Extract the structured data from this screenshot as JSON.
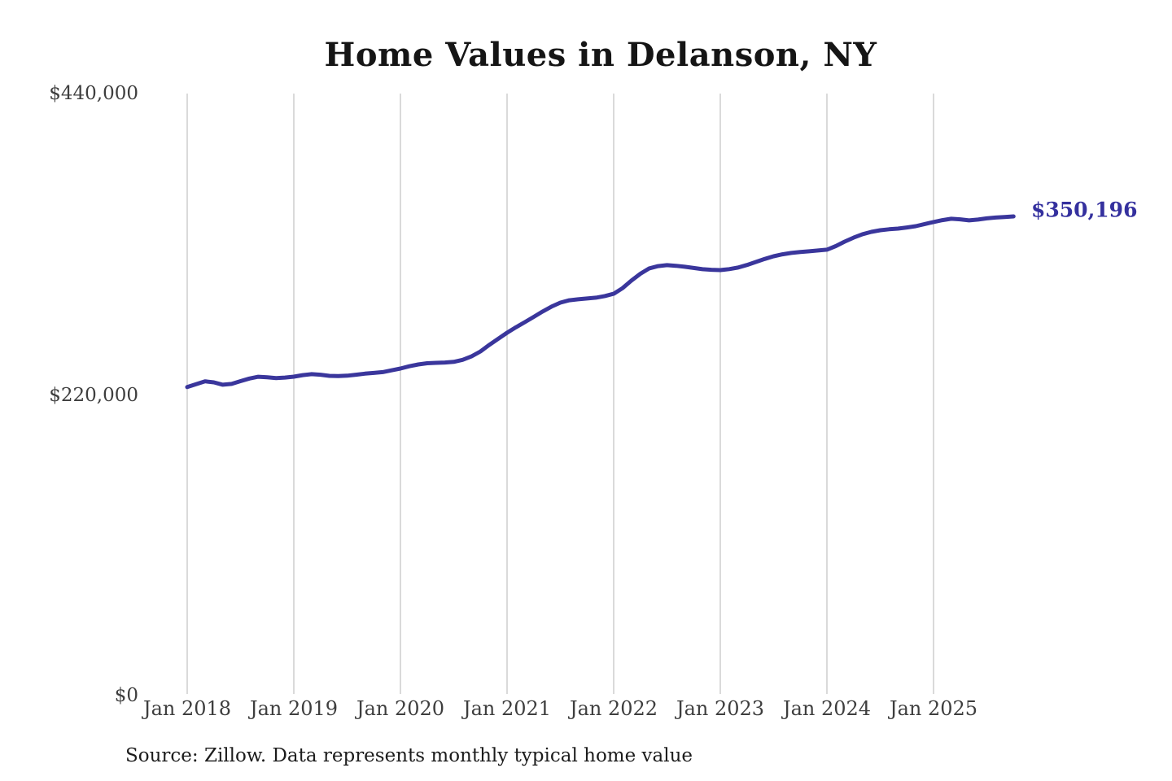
{
  "page": {
    "title": "Home Values in Delanson, NY",
    "end_label": "$350,196",
    "source_note": "Source: Zillow. Data represents monthly typical home value"
  },
  "colors": {
    "line": "#3a369c",
    "annotation": "#34309e",
    "gridline": "#cbcbcb",
    "tick_text": "#3e3e3e"
  },
  "chart_data": {
    "type": "line",
    "title": "Home Values in Delanson, NY",
    "series_name": "Monthly typical home value (USD)",
    "x_start": "2018-01",
    "x_end": "2025-10",
    "cadence": "monthly",
    "x_tick_labels": [
      "Jan 2018",
      "Jan 2019",
      "Jan 2020",
      "Jan 2021",
      "Jan 2022",
      "Jan 2023",
      "Jan 2024",
      "Jan 2025"
    ],
    "y_tick_labels": [
      "$440,000",
      "$220,000",
      "$0"
    ],
    "y_ticks": [
      440000,
      220000,
      0
    ],
    "ylim": [
      0,
      440000
    ],
    "grid": "vertical-only",
    "legend": "none",
    "annotation": {
      "text": "$350,196",
      "value": 350196,
      "position": "end-of-line"
    },
    "values": [
      225500,
      227600,
      229700,
      228900,
      227200,
      227800,
      229800,
      231700,
      233000,
      232600,
      232000,
      232400,
      233100,
      234200,
      234900,
      234500,
      233700,
      233500,
      233800,
      234500,
      235300,
      235800,
      236400,
      237700,
      239000,
      240700,
      242000,
      242900,
      243200,
      243400,
      243900,
      245400,
      247900,
      251500,
      256300,
      260800,
      265200,
      269200,
      272900,
      276800,
      280700,
      284300,
      287200,
      288900,
      289600,
      290200,
      290800,
      292000,
      293700,
      297800,
      303300,
      308300,
      312200,
      313900,
      314600,
      314100,
      313400,
      312500,
      311600,
      311200,
      311000,
      311700,
      312800,
      314700,
      316900,
      319100,
      321100,
      322500,
      323500,
      324200,
      324700,
      325300,
      325900,
      328500,
      331800,
      334700,
      337200,
      338900,
      340100,
      340800,
      341300,
      342100,
      343100,
      344600,
      346100,
      347500,
      348500,
      348100,
      347300,
      347900,
      348800,
      349400,
      349800,
      350196
    ]
  }
}
